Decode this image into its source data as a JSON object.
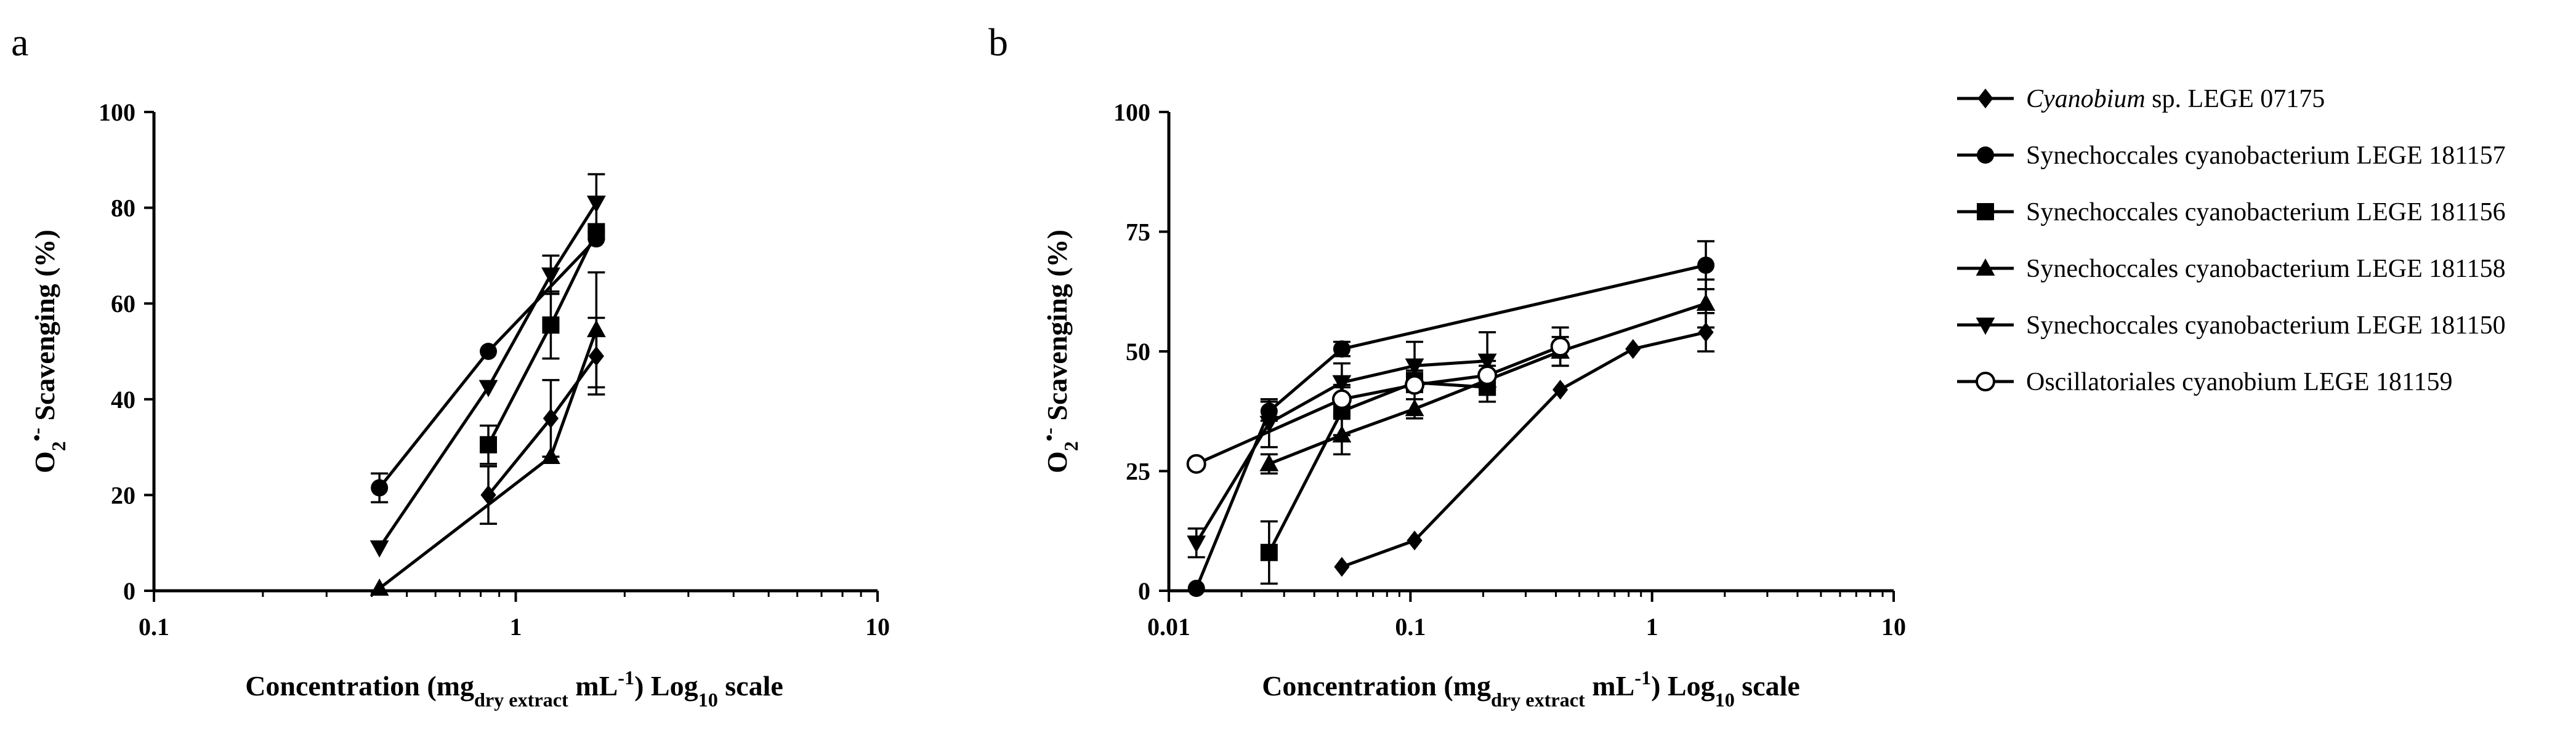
{
  "figure": {
    "legend": {
      "entries": [
        {
          "series": "cyanobium",
          "italic": "Cyanobium",
          "rest": " sp. LEGE 07175",
          "marker": "diamond"
        },
        {
          "series": "syn157",
          "italic": "",
          "rest": "Synechoccales cyanobacterium LEGE 181157",
          "marker": "circle"
        },
        {
          "series": "syn156",
          "italic": "",
          "rest": "Synechoccales cyanobacterium LEGE 181156",
          "marker": "square"
        },
        {
          "series": "syn158",
          "italic": "",
          "rest": "Synechoccales cyanobacterium LEGE 181158",
          "marker": "triangle-up"
        },
        {
          "series": "syn150",
          "italic": "",
          "rest": "Synechoccales cyanobacterium LEGE 181150",
          "marker": "triangle-down"
        },
        {
          "series": "osc159",
          "italic": "",
          "rest": "Oscillatoriales cyanobium LEGE 181159",
          "marker": "open-circle"
        }
      ]
    }
  },
  "chart_data": [
    {
      "panel": "a",
      "type": "line",
      "x_scale": "log10",
      "xlim": [
        0.1,
        10
      ],
      "ylim": [
        0,
        100
      ],
      "x_ticks": [
        0.1,
        1,
        10
      ],
      "x_tick_labels": [
        "0.1",
        "1",
        "10"
      ],
      "y_ticks": [
        0,
        20,
        40,
        60,
        80,
        100
      ],
      "y_tick_labels": [
        "0",
        "20",
        "40",
        "60",
        "80",
        "100"
      ],
      "ylabel": {
        "base": "O",
        "sub": "2",
        "sup": "•-",
        "rest": " Scavenging (%)"
      },
      "xlabel": {
        "pre": "Concentration (mg",
        "sub": "dry extract",
        "mid": " mL",
        "sup": "-1",
        "post": ") Log",
        "sub2": "10",
        "end": " scale"
      },
      "series": [
        {
          "name": "Cyanobium sp. LEGE 07175",
          "key": "cyanobium",
          "marker": "diamond",
          "x": [
            0.84,
            1.25,
            1.67
          ],
          "y": [
            20,
            36,
            49
          ],
          "err": [
            6,
            8,
            8
          ]
        },
        {
          "name": "Synechoccales cyanobacterium LEGE 181157",
          "key": "syn157",
          "marker": "circle",
          "x": [
            0.42,
            0.84,
            1.67
          ],
          "y": [
            21.5,
            50,
            73.5
          ],
          "err": [
            3,
            0,
            0
          ]
        },
        {
          "name": "Synechoccales cyanobacterium LEGE 181156",
          "key": "syn156",
          "marker": "square",
          "x": [
            0.84,
            1.25,
            1.67
          ],
          "y": [
            30.5,
            55.5,
            75
          ],
          "err": [
            4,
            7,
            0
          ]
        },
        {
          "name": "Synechoccales cyanobacterium LEGE 181158",
          "key": "syn158",
          "marker": "triangle-up",
          "x": [
            0.42,
            1.25,
            1.67
          ],
          "y": [
            0.5,
            28,
            54.5
          ],
          "err": [
            0,
            0,
            12
          ]
        },
        {
          "name": "Synechoccales cyanobacterium LEGE 181150",
          "key": "syn150",
          "marker": "triangle-down",
          "x": [
            0.42,
            0.84,
            1.25,
            1.67
          ],
          "y": [
            9,
            42.5,
            66,
            81
          ],
          "err": [
            0,
            0,
            4,
            6
          ]
        }
      ]
    },
    {
      "panel": "b",
      "type": "line",
      "x_scale": "log10",
      "xlim": [
        0.01,
        10
      ],
      "ylim": [
        0,
        100
      ],
      "x_ticks": [
        0.01,
        0.1,
        1,
        10
      ],
      "x_tick_labels": [
        "0.01",
        "0.1",
        "1",
        "10"
      ],
      "y_ticks": [
        0,
        25,
        50,
        75,
        100
      ],
      "y_tick_labels": [
        "0",
        "25",
        "50",
        "75",
        "100"
      ],
      "ylabel": {
        "base": "O",
        "sub": "2",
        "sup": "•-",
        "rest": " Scavenging (%)"
      },
      "xlabel": {
        "pre": "Concentration (mg",
        "sub": "dry extract",
        "mid": " mL",
        "sup": "-1",
        "post": ") Log",
        "sub2": "10",
        "end": " scale"
      },
      "series": [
        {
          "name": "Cyanobium sp. LEGE 07175",
          "key": "cyanobium",
          "marker": "diamond",
          "x": [
            0.052,
            0.104,
            0.417,
            0.834,
            1.67
          ],
          "y": [
            5,
            10.5,
            42,
            50.5,
            54
          ],
          "err": [
            0,
            0,
            0,
            0,
            4
          ]
        },
        {
          "name": "Synechoccales cyanobacterium LEGE 181157",
          "key": "syn157",
          "marker": "circle",
          "x": [
            0.013,
            0.026,
            0.052,
            1.67
          ],
          "y": [
            0.5,
            37.5,
            50.5,
            68
          ],
          "err": [
            0,
            2,
            1.5,
            5
          ]
        },
        {
          "name": "Synechoccales cyanobacterium LEGE 181156",
          "key": "syn156",
          "marker": "square",
          "x": [
            0.026,
            0.052,
            0.104,
            0.208
          ],
          "y": [
            8,
            37.5,
            43.5,
            42.5
          ],
          "err": [
            6.5,
            5,
            2,
            3
          ]
        },
        {
          "name": "Synechoccales cyanobacterium LEGE 181158",
          "key": "syn158",
          "marker": "triangle-up",
          "x": [
            0.026,
            0.052,
            0.104,
            0.208,
            0.417,
            1.67
          ],
          "y": [
            26.5,
            32.5,
            38,
            44,
            50,
            60
          ],
          "err": [
            2,
            4,
            2,
            3,
            3,
            5
          ]
        },
        {
          "name": "Synechoccales cyanobacterium LEGE 181150",
          "key": "syn150",
          "marker": "triangle-down",
          "x": [
            0.013,
            0.026,
            0.052,
            0.104,
            0.208
          ],
          "y": [
            10,
            35,
            43.5,
            47,
            48
          ],
          "err": [
            3,
            5,
            4,
            5,
            6
          ]
        },
        {
          "name": "Oscillatoriales cyanobium LEGE 181159",
          "key": "osc159",
          "marker": "open-circle",
          "x": [
            0.013,
            0.052,
            0.104,
            0.208,
            0.417
          ],
          "y": [
            26.5,
            40,
            43,
            45,
            51
          ],
          "err": [
            0,
            3,
            3,
            3,
            4
          ]
        }
      ]
    }
  ],
  "panels": {
    "a": {
      "letter": "a"
    },
    "b": {
      "letter": "b"
    }
  }
}
